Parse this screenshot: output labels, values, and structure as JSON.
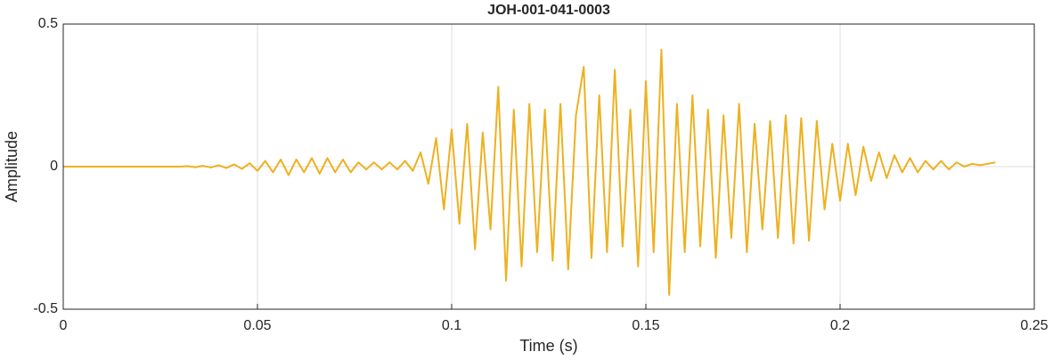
{
  "chart_data": {
    "type": "line",
    "title": "JOH-001-041-0003",
    "xlabel": "Time (s)",
    "ylabel": "Amplitude",
    "x": [
      0,
      0.002,
      0.004,
      0.006,
      0.008,
      0.01,
      0.012,
      0.014,
      0.016,
      0.018,
      0.02,
      0.022,
      0.024,
      0.026,
      0.028,
      0.03,
      0.032,
      0.034,
      0.036,
      0.038,
      0.04,
      0.042,
      0.044,
      0.046,
      0.048,
      0.05,
      0.052,
      0.054,
      0.056,
      0.058,
      0.06,
      0.062,
      0.064,
      0.066,
      0.068,
      0.07,
      0.072,
      0.074,
      0.076,
      0.078,
      0.08,
      0.082,
      0.084,
      0.086,
      0.088,
      0.09,
      0.092,
      0.094,
      0.096,
      0.098,
      0.1,
      0.102,
      0.104,
      0.106,
      0.108,
      0.11,
      0.112,
      0.114,
      0.116,
      0.118,
      0.12,
      0.122,
      0.124,
      0.126,
      0.128,
      0.13,
      0.132,
      0.134,
      0.136,
      0.138,
      0.14,
      0.142,
      0.144,
      0.146,
      0.148,
      0.15,
      0.152,
      0.154,
      0.156,
      0.158,
      0.16,
      0.162,
      0.164,
      0.166,
      0.168,
      0.17,
      0.172,
      0.174,
      0.176,
      0.178,
      0.18,
      0.182,
      0.184,
      0.186,
      0.188,
      0.19,
      0.192,
      0.194,
      0.196,
      0.198,
      0.2,
      0.202,
      0.204,
      0.206,
      0.208,
      0.21,
      0.212,
      0.214,
      0.216,
      0.218,
      0.22,
      0.222,
      0.224,
      0.226,
      0.228,
      0.23,
      0.232,
      0.234,
      0.236,
      0.238,
      0.24
    ],
    "series": [
      {
        "name": "JOH-001-041-0003",
        "color": "#edb120",
        "values": [
          0,
          0,
          0,
          0,
          0,
          0,
          0,
          0,
          0,
          0,
          0,
          0,
          0,
          0,
          0,
          0,
          0.002,
          -0.002,
          0.003,
          -0.003,
          0.005,
          -0.005,
          0.008,
          -0.008,
          0.012,
          -0.015,
          0.02,
          -0.02,
          0.025,
          -0.03,
          0.025,
          -0.02,
          0.03,
          -0.025,
          0.03,
          -0.02,
          0.025,
          -0.02,
          0.015,
          -0.01,
          0.015,
          -0.01,
          0.015,
          -0.01,
          0.02,
          -0.015,
          0.05,
          -0.06,
          0.1,
          -0.15,
          0.13,
          -0.2,
          0.15,
          -0.29,
          0.12,
          -0.22,
          0.28,
          -0.4,
          0.2,
          -0.35,
          0.22,
          -0.3,
          0.2,
          -0.33,
          0.22,
          -0.36,
          0.18,
          0.35,
          -0.32,
          0.25,
          -0.3,
          0.34,
          -0.28,
          0.2,
          -0.35,
          0.3,
          -0.3,
          0.41,
          -0.45,
          0.22,
          -0.3,
          0.25,
          -0.28,
          0.2,
          -0.32,
          0.18,
          -0.25,
          0.22,
          -0.3,
          0.15,
          -0.22,
          0.16,
          -0.25,
          0.18,
          -0.27,
          0.17,
          -0.26,
          0.16,
          -0.15,
          0.08,
          -0.12,
          0.08,
          -0.1,
          0.07,
          -0.05,
          0.05,
          -0.04,
          0.04,
          -0.02,
          0.03,
          -0.02,
          0.02,
          -0.01,
          0.02,
          -0.01,
          0.015,
          0,
          0.01,
          0.005,
          0.01,
          0.015
        ]
      }
    ],
    "xlim": [
      0,
      0.25
    ],
    "xticks": [
      0,
      0.05,
      0.1,
      0.15,
      0.2,
      0.25
    ],
    "ylim": [
      -0.5,
      0.5
    ],
    "yticks": [
      -0.5,
      0,
      0.5
    ],
    "grid": true
  }
}
